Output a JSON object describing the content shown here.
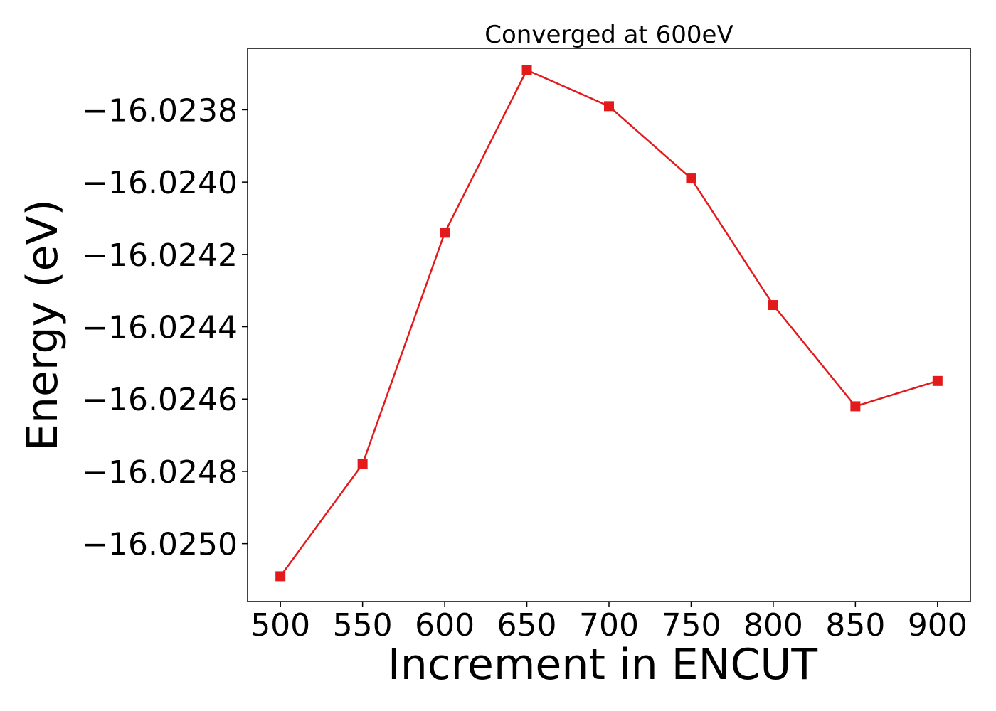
{
  "chart_data": {
    "type": "line",
    "title": "Converged at 600eV",
    "xlabel": "Increment in ENCUT",
    "ylabel": "Energy (eV)",
    "x": [
      500,
      550,
      600,
      650,
      700,
      750,
      800,
      850,
      900
    ],
    "series": [
      {
        "values": [
          -16.02509,
          -16.02478,
          -16.02414,
          -16.02369,
          -16.02379,
          -16.02399,
          -16.02434,
          -16.02462,
          -16.02455
        ],
        "color": "#e31a1c",
        "marker": "square"
      }
    ],
    "xticks": [
      500,
      550,
      600,
      650,
      700,
      750,
      800,
      850,
      900
    ],
    "xtick_labels": [
      "500",
      "550",
      "600",
      "650",
      "700",
      "750",
      "800",
      "850",
      "900"
    ],
    "yticks": [
      -16.0238,
      -16.024,
      -16.0242,
      -16.0244,
      -16.0246,
      -16.0248,
      -16.025
    ],
    "ytick_labels": [
      "−16.0238",
      "−16.0240",
      "−16.0242",
      "−16.0244",
      "−16.0246",
      "−16.0248",
      "−16.0250"
    ],
    "xlim": [
      480,
      920
    ],
    "ylim": [
      -16.02516,
      -16.02363
    ],
    "grid": false,
    "legend": "none"
  }
}
